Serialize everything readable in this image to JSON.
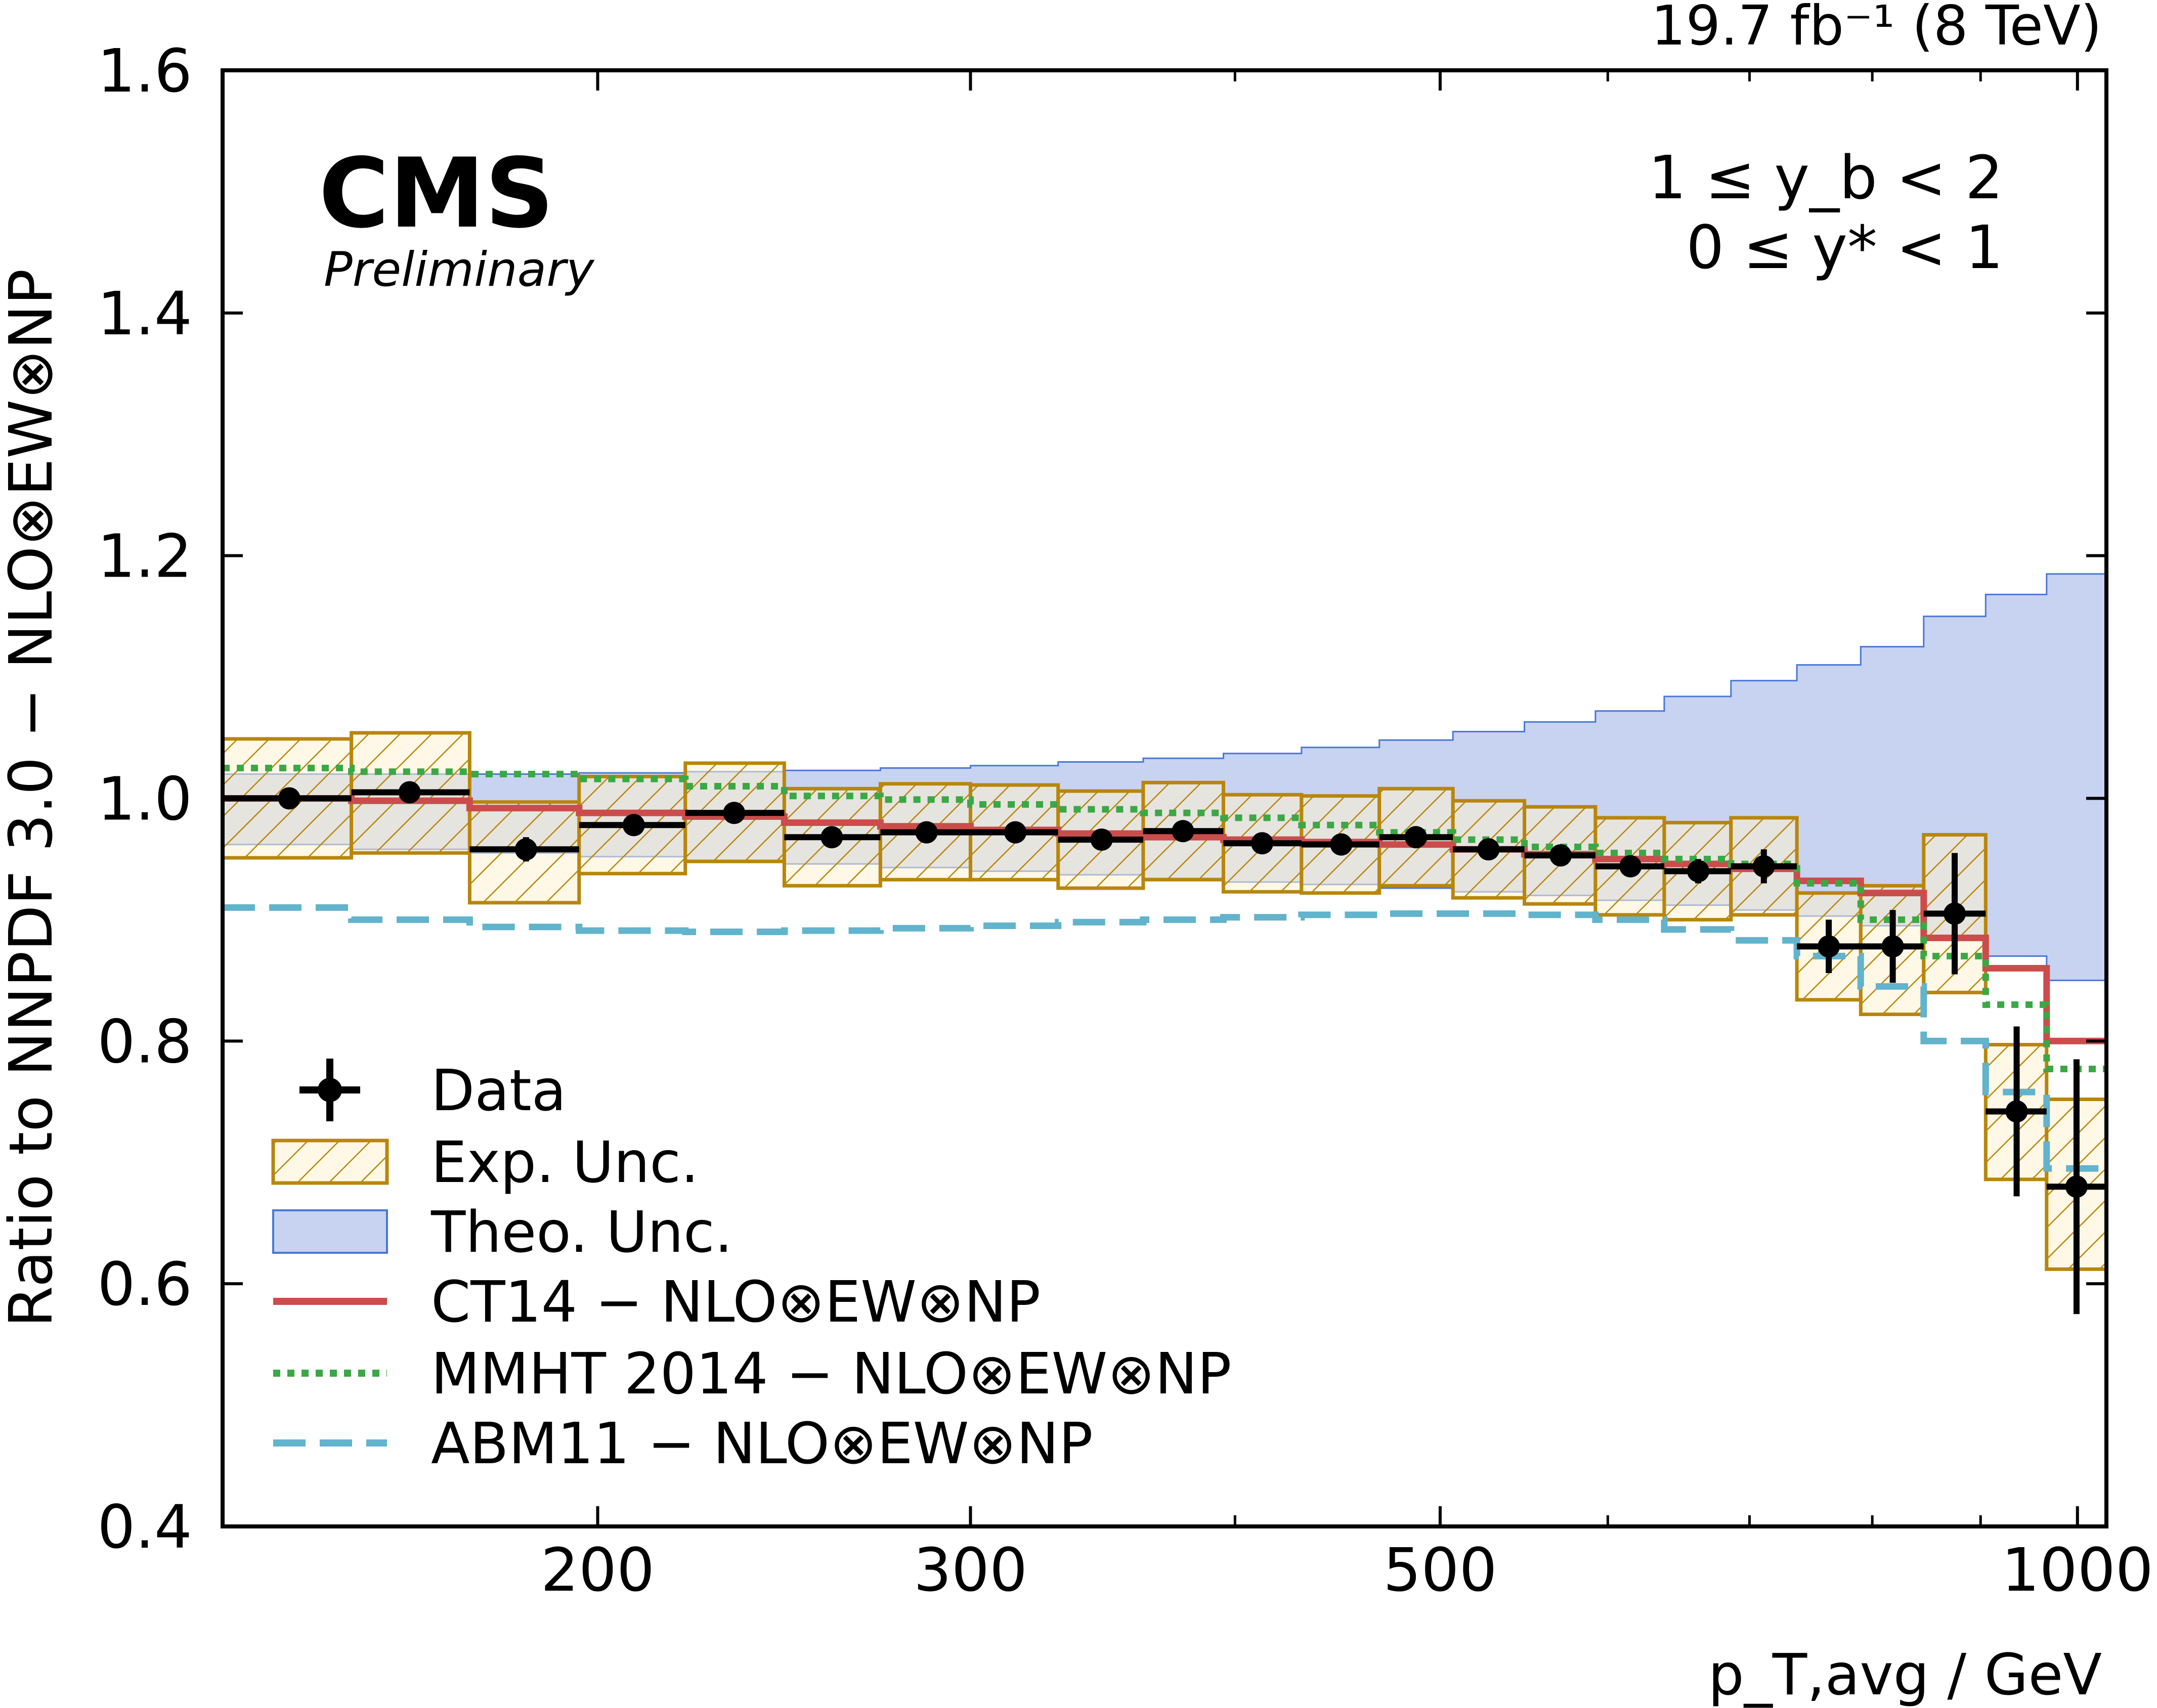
{
  "chart_data": {
    "type": "line",
    "title": "",
    "luminosity": "19.7 fb⁻¹ (8 TeV)",
    "experiment": "CMS",
    "status": "Preliminary",
    "region": {
      "line1": "1 ≤ y_b < 2",
      "line2": "0 ≤ y* < 1"
    },
    "xlabel": "p_T,avg / GeV",
    "ylabel": "Ratio to NNPDF 3.0 − NLO⊗EW⊗NP",
    "xscale": "log",
    "xlim": [
      133,
      1032
    ],
    "ylim": [
      0.4,
      1.6
    ],
    "xticks": [
      200,
      300,
      500,
      1000
    ],
    "xtick_labels": [
      "200",
      "300",
      "500",
      "1000"
    ],
    "xminor": [
      400,
      600,
      700,
      800,
      900
    ],
    "yticks": [
      0.4,
      0.6,
      0.8,
      1.0,
      1.2,
      1.4,
      1.6
    ],
    "ytick_labels": [
      "0.4",
      "0.6",
      "0.8",
      "1.0",
      "1.2",
      "1.4",
      "1.6"
    ],
    "reference_line": 1.0,
    "bin_edges": [
      133,
      153,
      174,
      196,
      220,
      245,
      272,
      300,
      330,
      362,
      395,
      430,
      468,
      507,
      548,
      592,
      638,
      686,
      737,
      790,
      846,
      905,
      967,
      1032
    ],
    "data": {
      "name": "Data",
      "x": [
        143,
        163,
        185,
        208,
        232,
        258,
        286,
        315,
        346,
        378,
        412,
        449,
        487,
        527,
        570,
        615,
        662,
        711,
        763,
        818,
        875,
        936,
        999
      ],
      "y": [
        1.0,
        1.005,
        0.958,
        0.978,
        0.988,
        0.968,
        0.972,
        0.972,
        0.966,
        0.973,
        0.963,
        0.962,
        0.968,
        0.958,
        0.953,
        0.944,
        0.94,
        0.944,
        0.878,
        0.878,
        0.905,
        0.742,
        0.68
      ],
      "yerr": [
        0.004,
        0.004,
        0.01,
        0.006,
        0.006,
        0.005,
        0.005,
        0.005,
        0.005,
        0.006,
        0.006,
        0.006,
        0.006,
        0.006,
        0.007,
        0.008,
        0.01,
        0.014,
        0.022,
        0.03,
        0.05,
        0.07,
        0.105
      ]
    },
    "series": [
      {
        "name": "Exp. Unc.",
        "style": "band-hatched",
        "color": "#b8860b",
        "lower": [
          0.951,
          0.955,
          0.914,
          0.938,
          0.948,
          0.928,
          0.933,
          0.933,
          0.926,
          0.933,
          0.923,
          0.922,
          0.928,
          0.918,
          0.913,
          0.904,
          0.9,
          0.904,
          0.834,
          0.822,
          0.84,
          0.686,
          0.612
        ],
        "upper": [
          1.049,
          1.054,
          0.997,
          1.018,
          1.029,
          1.008,
          1.012,
          1.011,
          1.006,
          1.013,
          1.003,
          1.002,
          1.008,
          0.998,
          0.993,
          0.984,
          0.98,
          0.984,
          0.922,
          0.928,
          0.97,
          0.797,
          0.752
        ]
      },
      {
        "name": "Theo. Unc.",
        "style": "band",
        "color": "#4a78d6",
        "lower": [
          0.962,
          0.958,
          0.955,
          0.952,
          0.949,
          0.946,
          0.943,
          0.94,
          0.937,
          0.934,
          0.931,
          0.929,
          0.926,
          0.923,
          0.92,
          0.916,
          0.912,
          0.908,
          0.903,
          0.895,
          0.885,
          0.87,
          0.85
        ],
        "upper": [
          1.02,
          1.02,
          1.02,
          1.021,
          1.022,
          1.023,
          1.025,
          1.027,
          1.03,
          1.033,
          1.037,
          1.042,
          1.048,
          1.055,
          1.063,
          1.072,
          1.084,
          1.097,
          1.11,
          1.125,
          1.15,
          1.168,
          1.185
        ]
      },
      {
        "name": "CT14 − NLO⊗EW⊗NP",
        "style": "solid",
        "color": "#cc4c4c",
        "values": [
          1.0,
          0.998,
          0.992,
          0.988,
          0.985,
          0.98,
          0.977,
          0.974,
          0.971,
          0.968,
          0.966,
          0.964,
          0.962,
          0.958,
          0.954,
          0.95,
          0.946,
          0.942,
          0.932,
          0.922,
          0.885,
          0.86,
          0.8
        ]
      },
      {
        "name": "MMHT 2014 − NLO⊗EW⊗NP",
        "style": "dotted",
        "color": "#3aa845",
        "values": [
          1.025,
          1.022,
          1.02,
          1.016,
          1.01,
          1.002,
          0.999,
          0.995,
          0.991,
          0.988,
          0.984,
          0.978,
          0.972,
          0.966,
          0.96,
          0.955,
          0.95,
          0.946,
          0.93,
          0.9,
          0.87,
          0.83,
          0.777
        ]
      },
      {
        "name": "ABM11 − NLO⊗EW⊗NP",
        "style": "dashed",
        "color": "#62b3cc",
        "values": [
          0.91,
          0.9,
          0.894,
          0.891,
          0.89,
          0.891,
          0.893,
          0.895,
          0.898,
          0.9,
          0.902,
          0.904,
          0.905,
          0.905,
          0.904,
          0.9,
          0.892,
          0.883,
          0.87,
          0.845,
          0.8,
          0.758,
          0.695
        ]
      }
    ],
    "legend": {
      "position": "bottom-left",
      "entries": [
        "Data",
        "Exp. Unc.",
        "Theo. Unc.",
        "CT14 − NLO⊗EW⊗NP",
        "MMHT 2014 − NLO⊗EW⊗NP",
        "ABM11 − NLO⊗EW⊗NP"
      ]
    }
  }
}
